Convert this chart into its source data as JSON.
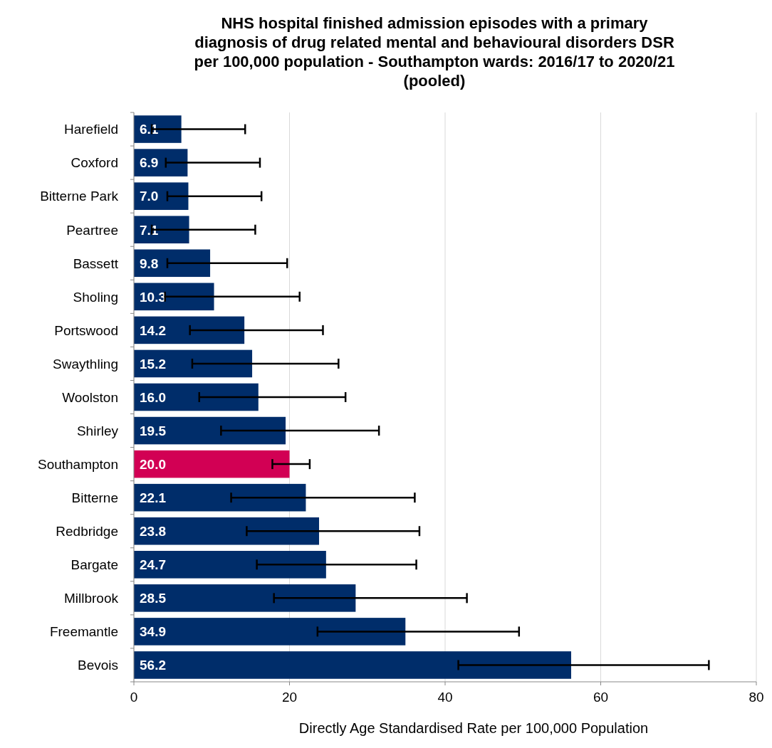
{
  "chart_data": {
    "type": "bar",
    "orientation": "horizontal",
    "title": "NHS hospital finished admission episodes with a primary diagnosis of drug related mental and behavioural disorders DSR per 100,000 population - Southampton wards: 2016/17 to 2020/21 (pooled)",
    "xlabel": "Directly Age Standardised Rate per 100,000 Population",
    "categories": [
      "Harefield",
      "Coxford",
      "Bitterne Park",
      "Peartree",
      "Bassett",
      "Sholing",
      "Portswood",
      "Swaythling",
      "Woolston",
      "Shirley",
      "Southampton",
      "Bitterne",
      "Redbridge",
      "Bargate",
      "Millbrook",
      "Freemantle",
      "Bevois"
    ],
    "values": [
      6.1,
      6.9,
      7.0,
      7.1,
      9.8,
      10.3,
      14.2,
      15.2,
      16.0,
      19.5,
      20.0,
      22.1,
      23.8,
      24.7,
      28.5,
      34.9,
      56.2
    ],
    "colors": [
      "#002d6a",
      "#002d6a",
      "#002d6a",
      "#002d6a",
      "#002d6a",
      "#002d6a",
      "#002d6a",
      "#002d6a",
      "#002d6a",
      "#002d6a",
      "#d20054",
      "#002d6a",
      "#002d6a",
      "#002d6a",
      "#002d6a",
      "#002d6a",
      "#002d6a"
    ],
    "errors": [
      [
        2.3,
        14.3
      ],
      [
        4.1,
        16.2
      ],
      [
        4.3,
        16.4
      ],
      [
        2.3,
        15.6
      ],
      [
        4.3,
        19.7
      ],
      [
        4.0,
        21.3
      ],
      [
        7.2,
        24.3
      ],
      [
        7.5,
        26.3
      ],
      [
        8.4,
        27.2
      ],
      [
        11.2,
        31.5
      ],
      [
        17.8,
        22.6
      ],
      [
        12.5,
        36.1
      ],
      [
        14.5,
        36.7
      ],
      [
        15.8,
        36.3
      ],
      [
        18.0,
        42.8
      ],
      [
        23.6,
        49.5
      ],
      [
        41.7,
        73.9
      ]
    ],
    "value_labels": [
      "6.1",
      "6.9",
      "7.0",
      "7.1",
      "9.8",
      "10.3",
      "14.2",
      "15.2",
      "16.0",
      "19.5",
      "20.0",
      "22.1",
      "23.8",
      "24.7",
      "28.5",
      "34.9",
      "56.2"
    ],
    "xlim": [
      0,
      80
    ],
    "xticks": [
      0,
      20,
      40,
      60,
      80
    ],
    "grid": "x"
  }
}
